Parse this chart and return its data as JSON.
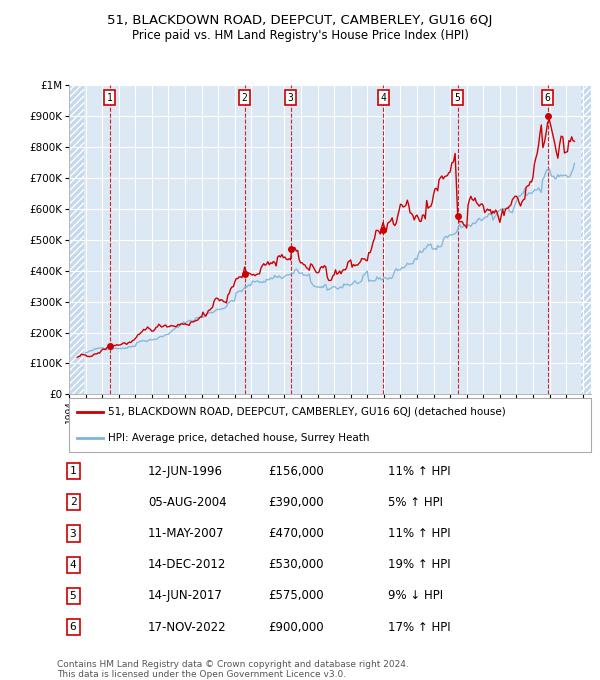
{
  "title": "51, BLACKDOWN ROAD, DEEPCUT, CAMBERLEY, GU16 6QJ",
  "subtitle": "Price paid vs. HM Land Registry's House Price Index (HPI)",
  "footer_line1": "Contains HM Land Registry data © Crown copyright and database right 2024.",
  "footer_line2": "This data is licensed under the Open Government Licence v3.0.",
  "legend_label_red": "51, BLACKDOWN ROAD, DEEPCUT, CAMBERLEY, GU16 6QJ (detached house)",
  "legend_label_blue": "HPI: Average price, detached house, Surrey Heath",
  "transactions": [
    {
      "num": 1,
      "date": "12-JUN-1996",
      "price": "£156,000",
      "hpi_pct": "11%",
      "hpi_dir": "↑"
    },
    {
      "num": 2,
      "date": "05-AUG-2004",
      "price": "£390,000",
      "hpi_pct": "5%",
      "hpi_dir": "↑"
    },
    {
      "num": 3,
      "date": "11-MAY-2007",
      "price": "£470,000",
      "hpi_pct": "11%",
      "hpi_dir": "↑"
    },
    {
      "num": 4,
      "date": "14-DEC-2012",
      "price": "£530,000",
      "hpi_pct": "19%",
      "hpi_dir": "↑"
    },
    {
      "num": 5,
      "date": "14-JUN-2017",
      "price": "£575,000",
      "hpi_pct": "9%",
      "hpi_dir": "↓"
    },
    {
      "num": 6,
      "date": "17-NOV-2022",
      "price": "£900,000",
      "hpi_pct": "17%",
      "hpi_dir": "↑"
    }
  ],
  "transaction_dates": [
    1996.45,
    2004.6,
    2007.37,
    2012.96,
    2017.45,
    2022.88
  ],
  "transaction_prices": [
    156000,
    390000,
    470000,
    530000,
    575000,
    900000
  ],
  "ylim": [
    0,
    1000000
  ],
  "xlim_left": 1994.0,
  "xlim_right": 2025.5,
  "hatch_left_end": 1994.92,
  "hatch_right_start": 2024.92,
  "bg_color": "#dde8f5",
  "hatch_color": "#c5d8ee",
  "grid_color": "#ffffff",
  "red_color": "#cc0000",
  "blue_color": "#7fb3d8"
}
